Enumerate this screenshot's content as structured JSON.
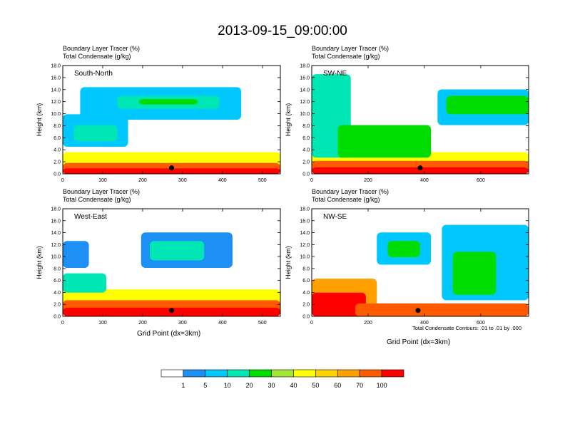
{
  "title": "2013-09-15_09:00:00",
  "panel_subtitle_1": "Boundary Layer Tracer   (%)",
  "panel_subtitle_2": "Total Condensate   (g/kg)",
  "ylabel": "Height (km)",
  "y_ticks": [
    "0.0",
    "2.0",
    "4.0",
    "6.0",
    "8.0",
    "10.0",
    "12.0",
    "14.0",
    "16.0",
    "18.0"
  ],
  "x_title": "Grid Point (dx=3km)",
  "contour_note": "Total Condensate Contours: .01 to .01 by .000",
  "colorbar": {
    "labels": [
      "1",
      "5",
      "10",
      "20",
      "30",
      "40",
      "50",
      "60",
      "70",
      "100"
    ],
    "colors": [
      "#ffffff",
      "#1e8ff5",
      "#00c8ff",
      "#00e6b4",
      "#00dc00",
      "#a0e632",
      "#ffff00",
      "#ffd200",
      "#ffa000",
      "#ff5a00",
      "#ff0000"
    ]
  },
  "chart_data": [
    {
      "type": "heatmap",
      "panel": "South-North",
      "x_ticks": [
        "0",
        "100",
        "200",
        "300",
        "400",
        "500"
      ],
      "xlim": [
        0,
        545
      ],
      "ylim": [
        0,
        18
      ]
    },
    {
      "type": "heatmap",
      "panel": "SW-NE",
      "x_ticks": [
        "0",
        "200",
        "400",
        "600"
      ],
      "xlim": [
        0,
        770
      ],
      "ylim": [
        0,
        18
      ]
    },
    {
      "type": "heatmap",
      "panel": "West-East",
      "x_ticks": [
        "0",
        "100",
        "200",
        "300",
        "400",
        "500"
      ],
      "xlim": [
        0,
        545
      ],
      "ylim": [
        0,
        18
      ]
    },
    {
      "type": "heatmap",
      "panel": "NW-SE",
      "x_ticks": [
        "0",
        "200",
        "400",
        "600"
      ],
      "xlim": [
        0,
        770
      ],
      "ylim": [
        0,
        18
      ]
    }
  ]
}
